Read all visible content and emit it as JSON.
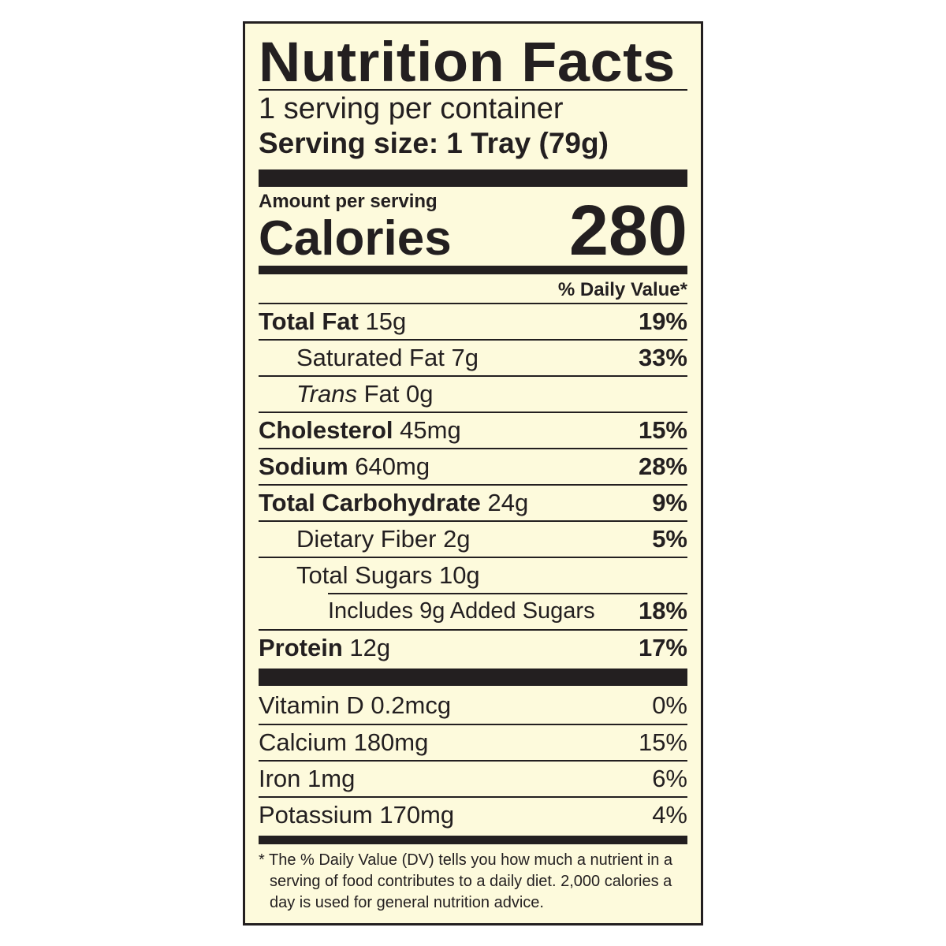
{
  "title": "Nutrition Facts",
  "servings_per_container": "1 serving per container",
  "serving_size_label": "Serving size:",
  "serving_size_value": "1 Tray (79g)",
  "amount_per_serving": "Amount per serving",
  "calories_label": "Calories",
  "calories_value": "280",
  "daily_value_header": "% Daily Value*",
  "nutrients": [
    {
      "name": "Total Fat",
      "amount": "15g",
      "dv": "19%"
    },
    {
      "name": "Saturated Fat",
      "amount": "7g",
      "dv": "33%"
    },
    {
      "name": "Trans",
      "name_rest": "Fat",
      "amount": "0g",
      "dv": ""
    },
    {
      "name": "Cholesterol",
      "amount": "45mg",
      "dv": "15%"
    },
    {
      "name": "Sodium",
      "amount": "640mg",
      "dv": "28%"
    },
    {
      "name": "Total Carbohydrate",
      "amount": "24g",
      "dv": "9%"
    },
    {
      "name": "Dietary Fiber",
      "amount": "2g",
      "dv": "5%"
    },
    {
      "name": "Total Sugars",
      "amount": "10g",
      "dv": ""
    },
    {
      "name": "Includes 9g Added Sugars",
      "amount": "",
      "dv": "18%"
    },
    {
      "name": "Protein",
      "amount": "12g",
      "dv": "17%"
    }
  ],
  "vitamins": [
    {
      "name": "Vitamin D 0.2mcg",
      "dv": "0%"
    },
    {
      "name": "Calcium 180mg",
      "dv": "15%"
    },
    {
      "name": "Iron 1mg",
      "dv": "6%"
    },
    {
      "name": "Potassium 170mg",
      "dv": "4%"
    }
  ],
  "footnote": "* The % Daily Value (DV) tells you how much a nutrient in a serving of food contributes to a daily diet. 2,000 calories a day is used for general nutrition advice."
}
